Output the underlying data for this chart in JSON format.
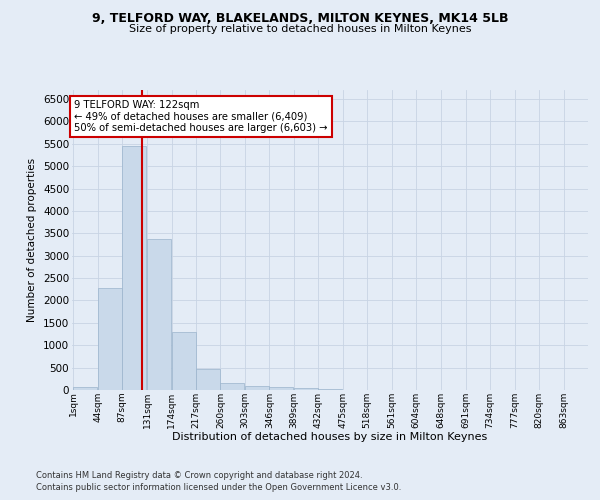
{
  "title1": "9, TELFORD WAY, BLAKELANDS, MILTON KEYNES, MK14 5LB",
  "title2": "Size of property relative to detached houses in Milton Keynes",
  "xlabel": "Distribution of detached houses by size in Milton Keynes",
  "ylabel": "Number of detached properties",
  "footer1": "Contains HM Land Registry data © Crown copyright and database right 2024.",
  "footer2": "Contains public sector information licensed under the Open Government Licence v3.0.",
  "annotation_title": "9 TELFORD WAY: 122sqm",
  "annotation_line1": "← 49% of detached houses are smaller (6,409)",
  "annotation_line2": "50% of semi-detached houses are larger (6,603) →",
  "property_size_sqm": 122,
  "bar_color": "#c9d9ea",
  "bar_edge_color": "#9ab3cc",
  "vline_color": "#cc0000",
  "annotation_box_color": "#ffffff",
  "annotation_box_edge_color": "#cc0000",
  "grid_color": "#c8d4e4",
  "background_color": "#e4ecf6",
  "categories": [
    "1sqm",
    "44sqm",
    "87sqm",
    "131sqm",
    "174sqm",
    "217sqm",
    "260sqm",
    "303sqm",
    "346sqm",
    "389sqm",
    "432sqm",
    "475sqm",
    "518sqm",
    "561sqm",
    "604sqm",
    "648sqm",
    "691sqm",
    "734sqm",
    "777sqm",
    "820sqm",
    "863sqm"
  ],
  "bin_edges": [
    1,
    44,
    87,
    131,
    174,
    217,
    260,
    303,
    346,
    389,
    432,
    475,
    518,
    561,
    604,
    648,
    691,
    734,
    777,
    820,
    863
  ],
  "bar_heights": [
    75,
    2280,
    5450,
    3380,
    1300,
    480,
    165,
    95,
    60,
    35,
    20,
    10,
    5,
    3,
    2,
    2,
    1,
    1,
    1,
    0
  ],
  "ylim": [
    0,
    6700
  ],
  "yticks": [
    0,
    500,
    1000,
    1500,
    2000,
    2500,
    3000,
    3500,
    4000,
    4500,
    5000,
    5500,
    6000,
    6500
  ]
}
